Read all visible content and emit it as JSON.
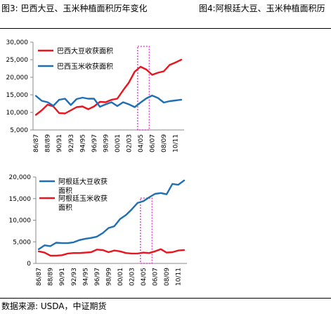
{
  "header": {
    "left_title": "图3: 巴西大豆、玉米种植面积历年变化",
    "right_title": "图4:阿根廷大豆、玉米种植面积历"
  },
  "footer": {
    "source": "数据来源: USDA，中证期货"
  },
  "colors": {
    "red": "#e8141e",
    "blue": "#1f6fb4",
    "highlight": "#e24bd4"
  },
  "chart_data": [
    {
      "type": "line",
      "title": "",
      "categories": [
        "86/87",
        "87/88",
        "88/89",
        "89/90",
        "90/91",
        "91/92",
        "92/93",
        "93/94",
        "94/95",
        "95/96",
        "96/97",
        "97/98",
        "98/99",
        "99/00",
        "00/01",
        "01/02",
        "02/03",
        "03/04",
        "04/05",
        "05/06",
        "06/07",
        "07/08",
        "08/09",
        "09/10",
        "10/11",
        "11/12"
      ],
      "tick_labels": [
        "86/87",
        "88/89",
        "90/91",
        "92/93",
        "94/95",
        "96/97",
        "98/99",
        "00/01",
        "02/03",
        "04/05",
        "06/07",
        "08/09",
        "10/11"
      ],
      "ylim": [
        5000,
        30000
      ],
      "yticks": [
        "5,000",
        "10,000",
        "15,000",
        "20,000",
        "25,000",
        "30,000"
      ],
      "legend_position": "top-left",
      "highlight": {
        "from": "04/05",
        "to": "05/06"
      },
      "series": [
        {
          "name": "巴西大豆收获面积",
          "color": "red",
          "values": [
            9300,
            10600,
            12200,
            11700,
            9800,
            9700,
            10600,
            11500,
            11700,
            10900,
            11700,
            13000,
            12900,
            13600,
            13900,
            16300,
            18500,
            21600,
            23000,
            22200,
            20700,
            21300,
            21700,
            23500,
            24200,
            25000
          ]
        },
        {
          "name": "巴西玉米收获面积",
          "color": "blue",
          "values": [
            14700,
            13300,
            12900,
            11900,
            13600,
            13900,
            12100,
            13800,
            14200,
            13900,
            13900,
            11600,
            12300,
            12900,
            11800,
            12900,
            12300,
            11500,
            12800,
            14000,
            14800,
            14100,
            12800,
            13200,
            13400,
            13600
          ]
        }
      ]
    },
    {
      "type": "line",
      "title": "",
      "categories": [
        "86/87",
        "87/88",
        "88/89",
        "89/90",
        "90/91",
        "91/92",
        "92/93",
        "93/94",
        "94/95",
        "95/96",
        "96/97",
        "97/98",
        "98/99",
        "99/00",
        "00/01",
        "01/02",
        "02/03",
        "03/04",
        "04/05",
        "05/06",
        "06/07",
        "07/08",
        "08/09",
        "09/10",
        "10/11",
        "11/12"
      ],
      "tick_labels": [
        "86/87",
        "88/89",
        "90/91",
        "92/93",
        "94/95",
        "96/97",
        "98/99",
        "00/01",
        "02/03",
        "04/05",
        "06/07",
        "08/09",
        "10/11"
      ],
      "ylim": [
        0,
        20000
      ],
      "yticks": [
        "0",
        "5,000",
        "10,000",
        "15,000",
        "20,000"
      ],
      "legend_position": "top-left",
      "highlight": {
        "from": "04/05",
        "to": "05/06"
      },
      "series": [
        {
          "name": "阿根廷大豆收获面积",
          "color": "blue",
          "values": [
            3300,
            4200,
            4000,
            4800,
            4700,
            4700,
            4900,
            5400,
            5700,
            5900,
            6200,
            7000,
            8200,
            8600,
            10300,
            11200,
            12500,
            14000,
            14400,
            15300,
            16100,
            16300,
            16000,
            18400,
            18200,
            19200
          ]
        },
        {
          "name": "阿根廷玉米收获面积",
          "color": "red",
          "values": [
            2800,
            2500,
            1800,
            1800,
            1900,
            2300,
            2400,
            2400,
            2500,
            2600,
            3200,
            3100,
            2600,
            3000,
            2800,
            2400,
            2300,
            2300,
            2500,
            2400,
            2800,
            3300,
            2500,
            2600,
            3000,
            3100
          ]
        }
      ]
    }
  ]
}
